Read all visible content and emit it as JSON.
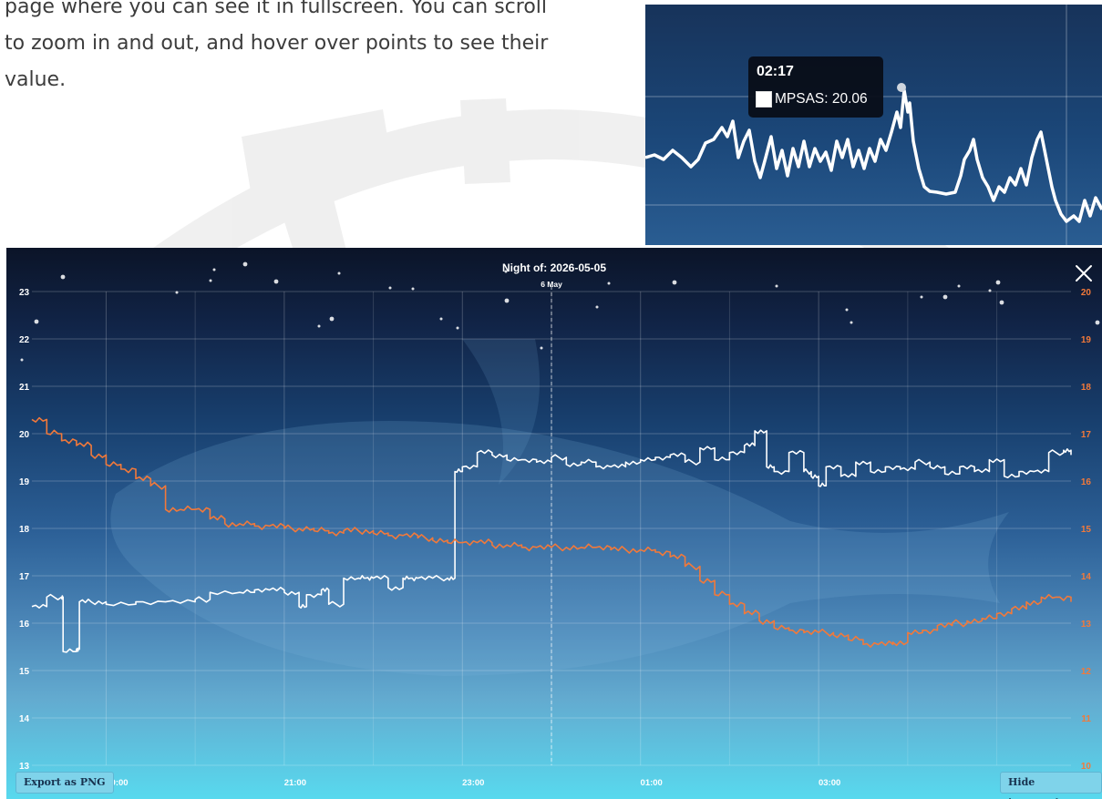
{
  "intro": {
    "lines": [
      "page where you can see it in fullscreen. You can scroll",
      "to zoom in and out, and hover over points to see their",
      "value."
    ]
  },
  "inset": {
    "tooltip": {
      "time": "02:17",
      "series_label": "MPSAS: 20.06"
    }
  },
  "colors": {
    "mpsas": "#ffffff",
    "temperature": "#f2793a",
    "left_axis_text": "#ffffff",
    "right_axis_text": "#f2793a"
  },
  "icons": {
    "close": "close-icon (x)"
  },
  "buttons": {
    "export": "Export as PNG",
    "hide_temperature": "Hide temperature"
  },
  "chart_data": {
    "type": "line",
    "title": "Night of: 2026-05-05",
    "day_marker": {
      "label": "6 May",
      "x": "00:00"
    },
    "x_range": [
      "18:10",
      "05:50"
    ],
    "x_ticks": [
      "19:00",
      "21:00",
      "23:00",
      "01:00",
      "03:00"
    ],
    "ylim_left": [
      13,
      23
    ],
    "y_ticks_left": [
      "13",
      "14",
      "15",
      "16",
      "17",
      "18",
      "19",
      "20",
      "21",
      "22",
      "23"
    ],
    "ylim_right": [
      10,
      20
    ],
    "y_ticks_right": [
      "10",
      "11",
      "12",
      "13",
      "14",
      "15",
      "16",
      "17",
      "18",
      "19",
      "20"
    ],
    "grid": true,
    "series": [
      {
        "axis": "left",
        "color": "#ffffff",
        "x": [
          "18:10",
          "18:20",
          "18:30",
          "18:31",
          "18:40",
          "18:42",
          "18:50",
          "19:00",
          "19:20",
          "19:40",
          "20:00",
          "20:10",
          "20:30",
          "20:40",
          "20:50",
          "21:00",
          "21:10",
          "21:15",
          "21:25",
          "21:30",
          "21:40",
          "21:50",
          "21:55",
          "22:00",
          "22:10",
          "22:20",
          "22:25",
          "22:30",
          "22:40",
          "22:50",
          "22:55",
          "23:00",
          "23:10",
          "23:20",
          "23:30",
          "23:40",
          "23:50",
          "00:00",
          "00:10",
          "00:20",
          "00:30",
          "00:40",
          "00:50",
          "01:00",
          "01:10",
          "01:20",
          "01:30",
          "01:40",
          "01:50",
          "02:00",
          "02:10",
          "02:17",
          "02:25",
          "02:30",
          "02:40",
          "02:50",
          "02:55",
          "03:00",
          "03:05",
          "03:15",
          "03:25",
          "03:35",
          "03:45",
          "03:55",
          "04:05",
          "04:15",
          "04:25",
          "04:35",
          "04:45",
          "04:55",
          "05:05",
          "05:15",
          "05:25",
          "05:35",
          "05:45",
          "05:50"
        ],
        "y": [
          16.35,
          16.55,
          16.55,
          15.4,
          15.45,
          16.45,
          16.45,
          16.4,
          16.45,
          16.45,
          16.5,
          16.65,
          16.65,
          16.7,
          16.7,
          16.65,
          16.35,
          16.6,
          16.7,
          16.4,
          16.95,
          16.95,
          16.95,
          16.95,
          16.75,
          16.95,
          16.95,
          16.95,
          16.95,
          16.95,
          19.2,
          19.3,
          19.6,
          19.55,
          19.45,
          19.45,
          19.4,
          19.5,
          19.35,
          19.4,
          19.3,
          19.3,
          19.4,
          19.45,
          19.5,
          19.55,
          19.4,
          19.7,
          19.45,
          19.6,
          19.75,
          20.06,
          19.3,
          19.2,
          19.6,
          19.2,
          19.1,
          18.9,
          19.3,
          19.1,
          19.4,
          19.2,
          19.3,
          19.25,
          19.4,
          19.3,
          19.15,
          19.3,
          19.2,
          19.45,
          19.1,
          19.2,
          19.2,
          19.6,
          19.65,
          19.55
        ]
      },
      {
        "axis": "right",
        "color": "#f2793a",
        "x": [
          "18:10",
          "18:20",
          "18:30",
          "18:40",
          "18:50",
          "19:00",
          "19:10",
          "19:20",
          "19:30",
          "19:40",
          "19:50",
          "20:00",
          "20:10",
          "20:20",
          "20:30",
          "20:40",
          "20:50",
          "21:00",
          "21:10",
          "21:20",
          "21:30",
          "21:40",
          "21:50",
          "22:00",
          "22:10",
          "22:20",
          "22:30",
          "22:40",
          "22:50",
          "23:00",
          "23:10",
          "23:20",
          "23:30",
          "23:40",
          "23:50",
          "00:00",
          "00:10",
          "00:20",
          "00:30",
          "00:40",
          "00:50",
          "01:00",
          "01:10",
          "01:20",
          "01:30",
          "01:40",
          "01:50",
          "02:00",
          "02:10",
          "02:20",
          "02:30",
          "02:40",
          "02:50",
          "03:00",
          "03:10",
          "03:20",
          "03:30",
          "03:40",
          "03:50",
          "04:00",
          "04:10",
          "04:20",
          "04:30",
          "04:40",
          "04:50",
          "05:00",
          "05:10",
          "05:20",
          "05:30",
          "05:40",
          "05:50"
        ],
        "y": [
          17.3,
          17.0,
          16.85,
          16.75,
          16.55,
          16.35,
          16.25,
          16.05,
          15.9,
          15.4,
          15.4,
          15.4,
          15.2,
          15.1,
          15.1,
          15.05,
          15.05,
          15.0,
          15.0,
          14.95,
          14.9,
          14.95,
          14.95,
          14.9,
          14.85,
          14.85,
          14.8,
          14.75,
          14.7,
          14.7,
          14.7,
          14.65,
          14.65,
          14.6,
          14.6,
          14.6,
          14.6,
          14.6,
          14.6,
          14.55,
          14.55,
          14.55,
          14.5,
          14.4,
          14.2,
          13.9,
          13.6,
          13.4,
          13.2,
          13.05,
          12.9,
          12.85,
          12.8,
          12.8,
          12.75,
          12.65,
          12.55,
          12.55,
          12.6,
          12.8,
          12.85,
          12.95,
          13.0,
          13.05,
          13.1,
          13.2,
          13.3,
          13.45,
          13.55,
          13.55,
          13.45
        ]
      }
    ]
  }
}
